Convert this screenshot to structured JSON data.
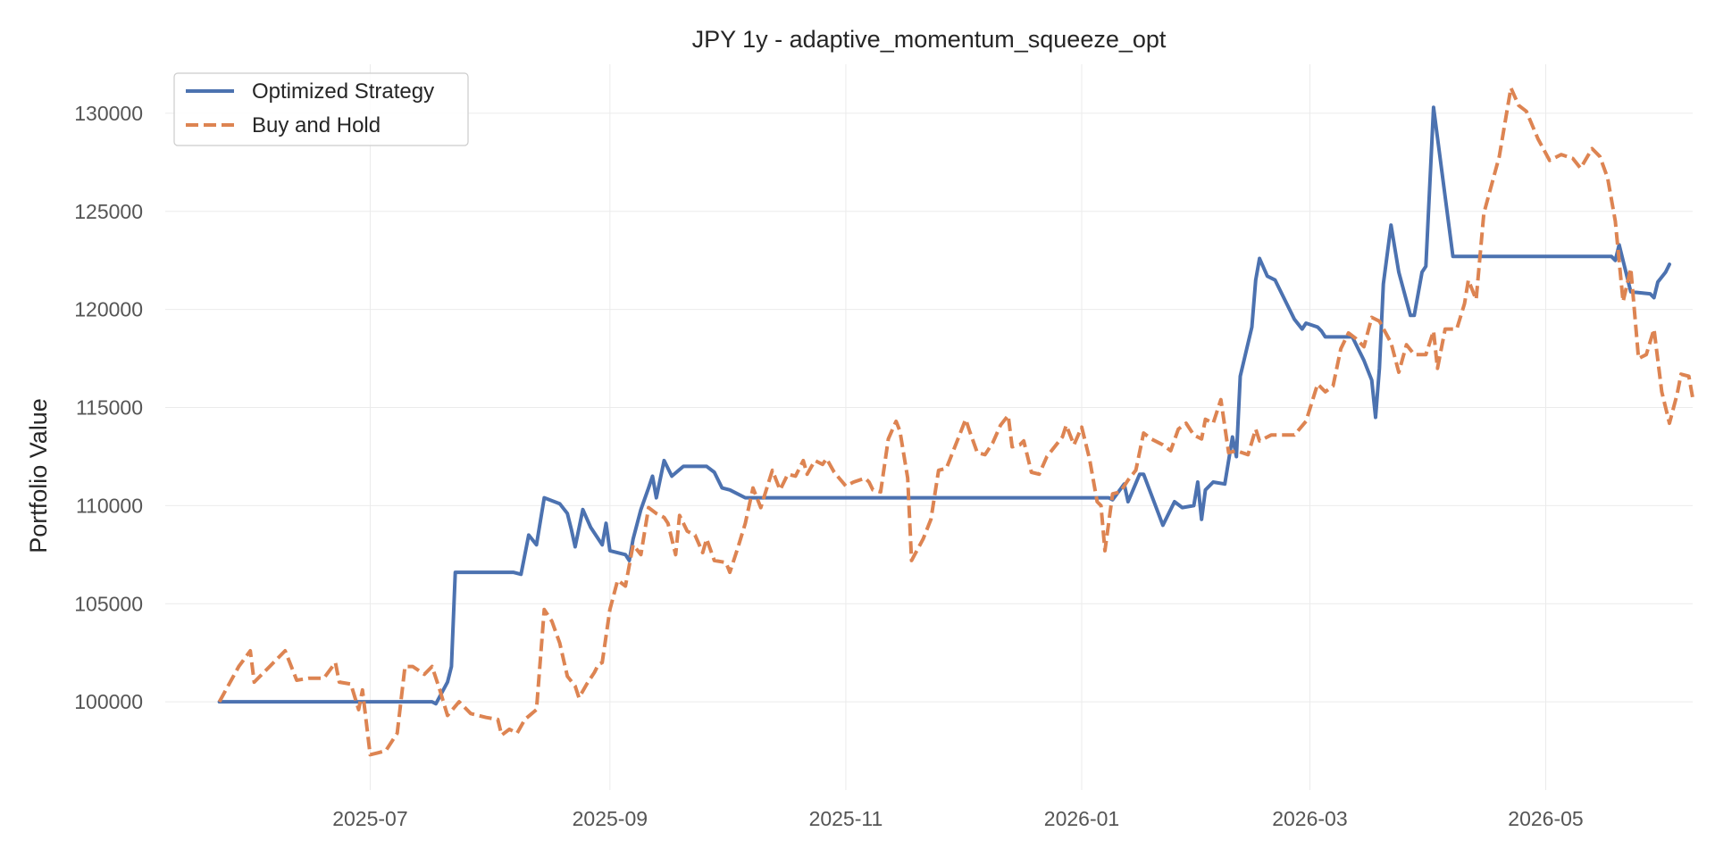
{
  "chart_data": {
    "type": "line",
    "title": "JPY 1y - adaptive_momentum_squeeze_opt",
    "xlabel": "",
    "ylabel": "Portfolio Value",
    "xlim": [
      "2025-05-09",
      "2026-06-08"
    ],
    "ylim": [
      95500,
      132500
    ],
    "grid": true,
    "legend_position": "top-left",
    "x_ticks": [
      "2025-07",
      "2025-09",
      "2025-11",
      "2026-01",
      "2026-03",
      "2026-05"
    ],
    "y_ticks": [
      100000,
      105000,
      110000,
      115000,
      120000,
      125000,
      130000
    ],
    "series": [
      {
        "name": "Optimized Strategy",
        "color": "#4c72b0",
        "style": "solid",
        "points": [
          [
            "2025-05-23",
            100000
          ],
          [
            "2025-07-17",
            100000
          ],
          [
            "2025-07-18",
            99900
          ],
          [
            "2025-07-21",
            101000
          ],
          [
            "2025-07-22",
            101800
          ],
          [
            "2025-07-23",
            106600
          ],
          [
            "2025-08-07",
            106600
          ],
          [
            "2025-08-09",
            106500
          ],
          [
            "2025-08-11",
            108500
          ],
          [
            "2025-08-13",
            108000
          ],
          [
            "2025-08-15",
            110400
          ],
          [
            "2025-08-19",
            110100
          ],
          [
            "2025-08-21",
            109600
          ],
          [
            "2025-08-22",
            108800
          ],
          [
            "2025-08-23",
            107900
          ],
          [
            "2025-08-25",
            109800
          ],
          [
            "2025-08-27",
            108900
          ],
          [
            "2025-08-30",
            108000
          ],
          [
            "2025-08-31",
            109100
          ],
          [
            "2025-09-01",
            107700
          ],
          [
            "2025-09-05",
            107500
          ],
          [
            "2025-09-06",
            107200
          ],
          [
            "2025-09-07",
            108300
          ],
          [
            "2025-09-09",
            109800
          ],
          [
            "2025-09-11",
            110900
          ],
          [
            "2025-09-12",
            111500
          ],
          [
            "2025-09-13",
            110400
          ],
          [
            "2025-09-15",
            112300
          ],
          [
            "2025-09-17",
            111500
          ],
          [
            "2025-09-20",
            112000
          ],
          [
            "2025-09-26",
            112000
          ],
          [
            "2025-09-28",
            111700
          ],
          [
            "2025-09-30",
            110900
          ],
          [
            "2025-10-02",
            110800
          ],
          [
            "2025-10-06",
            110400
          ],
          [
            "2026-01-08",
            110400
          ],
          [
            "2026-01-09",
            110300
          ],
          [
            "2026-01-12",
            111100
          ],
          [
            "2026-01-13",
            110200
          ],
          [
            "2026-01-16",
            111600
          ],
          [
            "2026-01-17",
            111600
          ],
          [
            "2026-01-22",
            109000
          ],
          [
            "2026-01-25",
            110200
          ],
          [
            "2026-01-27",
            109900
          ],
          [
            "2026-01-30",
            110000
          ],
          [
            "2026-01-31",
            111200
          ],
          [
            "2026-02-01",
            109300
          ],
          [
            "2026-02-02",
            110800
          ],
          [
            "2026-02-04",
            111200
          ],
          [
            "2026-02-07",
            111100
          ],
          [
            "2026-02-09",
            113500
          ],
          [
            "2026-02-10",
            112500
          ],
          [
            "2026-02-11",
            116600
          ],
          [
            "2026-02-14",
            119100
          ],
          [
            "2026-02-15",
            121500
          ],
          [
            "2026-02-16",
            122600
          ],
          [
            "2026-02-18",
            121700
          ],
          [
            "2026-02-20",
            121500
          ],
          [
            "2026-02-25",
            119500
          ],
          [
            "2026-02-27",
            119000
          ],
          [
            "2026-02-28",
            119300
          ],
          [
            "2026-03-03",
            119100
          ],
          [
            "2026-03-04",
            118900
          ],
          [
            "2026-03-05",
            118600
          ],
          [
            "2026-03-12",
            118600
          ],
          [
            "2026-03-15",
            117400
          ],
          [
            "2026-03-17",
            116400
          ],
          [
            "2026-03-18",
            114500
          ],
          [
            "2026-03-19",
            117000
          ],
          [
            "2026-03-20",
            121300
          ],
          [
            "2026-03-22",
            124300
          ],
          [
            "2026-03-24",
            121900
          ],
          [
            "2026-03-27",
            119700
          ],
          [
            "2026-03-28",
            119700
          ],
          [
            "2026-03-30",
            121900
          ],
          [
            "2026-03-31",
            122200
          ],
          [
            "2026-04-02",
            130300
          ],
          [
            "2026-04-07",
            122700
          ],
          [
            "2026-05-10",
            122700
          ],
          [
            "2026-05-18",
            122700
          ],
          [
            "2026-05-19",
            122500
          ],
          [
            "2026-05-20",
            123300
          ],
          [
            "2026-05-23",
            120900
          ],
          [
            "2026-05-28",
            120800
          ],
          [
            "2026-05-29",
            120600
          ],
          [
            "2026-05-30",
            121400
          ],
          [
            "2026-06-01",
            121900
          ],
          [
            "2026-06-02",
            122300
          ]
        ]
      },
      {
        "name": "Buy and Hold",
        "color": "#dd8452",
        "style": "dashed",
        "points": [
          [
            "2025-05-23",
            100000
          ],
          [
            "2025-05-28",
            101800
          ],
          [
            "2025-05-31",
            102600
          ],
          [
            "2025-06-01",
            101000
          ],
          [
            "2025-06-05",
            101800
          ],
          [
            "2025-06-09",
            102600
          ],
          [
            "2025-06-12",
            101100
          ],
          [
            "2025-06-15",
            101200
          ],
          [
            "2025-06-19",
            101200
          ],
          [
            "2025-06-22",
            102000
          ],
          [
            "2025-06-23",
            101000
          ],
          [
            "2025-06-26",
            100900
          ],
          [
            "2025-06-28",
            99600
          ],
          [
            "2025-06-29",
            100600
          ],
          [
            "2025-07-01",
            97300
          ],
          [
            "2025-07-03",
            97400
          ],
          [
            "2025-07-05",
            97500
          ],
          [
            "2025-07-08",
            98400
          ],
          [
            "2025-07-10",
            101800
          ],
          [
            "2025-07-12",
            101800
          ],
          [
            "2025-07-15",
            101400
          ],
          [
            "2025-07-17",
            101800
          ],
          [
            "2025-07-19",
            100600
          ],
          [
            "2025-07-21",
            99300
          ],
          [
            "2025-07-24",
            100000
          ],
          [
            "2025-07-27",
            99400
          ],
          [
            "2025-07-31",
            99200
          ],
          [
            "2025-08-03",
            99100
          ],
          [
            "2025-08-04",
            98300
          ],
          [
            "2025-08-06",
            98600
          ],
          [
            "2025-08-08",
            98400
          ],
          [
            "2025-08-10",
            99100
          ],
          [
            "2025-08-13",
            99600
          ],
          [
            "2025-08-15",
            104700
          ],
          [
            "2025-08-17",
            104100
          ],
          [
            "2025-08-19",
            103000
          ],
          [
            "2025-08-21",
            101300
          ],
          [
            "2025-08-23",
            100800
          ],
          [
            "2025-08-24",
            100200
          ],
          [
            "2025-08-26",
            100900
          ],
          [
            "2025-08-28",
            101500
          ],
          [
            "2025-08-29",
            101900
          ],
          [
            "2025-08-30",
            102000
          ],
          [
            "2025-09-01",
            104700
          ],
          [
            "2025-09-03",
            106200
          ],
          [
            "2025-09-05",
            105900
          ],
          [
            "2025-09-07",
            108000
          ],
          [
            "2025-09-09",
            107500
          ],
          [
            "2025-09-11",
            109900
          ],
          [
            "2025-09-13",
            109600
          ],
          [
            "2025-09-15",
            109400
          ],
          [
            "2025-09-16",
            109100
          ],
          [
            "2025-09-18",
            107500
          ],
          [
            "2025-09-19",
            109500
          ],
          [
            "2025-09-21",
            108700
          ],
          [
            "2025-09-23",
            108500
          ],
          [
            "2025-09-25",
            107600
          ],
          [
            "2025-09-26",
            108300
          ],
          [
            "2025-09-28",
            107200
          ],
          [
            "2025-10-01",
            107100
          ],
          [
            "2025-10-02",
            106600
          ],
          [
            "2025-10-04",
            107800
          ],
          [
            "2025-10-06",
            109100
          ],
          [
            "2025-10-08",
            110900
          ],
          [
            "2025-10-10",
            109900
          ],
          [
            "2025-10-13",
            111800
          ],
          [
            "2025-10-15",
            110800
          ],
          [
            "2025-10-17",
            111600
          ],
          [
            "2025-10-19",
            111500
          ],
          [
            "2025-10-21",
            112300
          ],
          [
            "2025-10-22",
            111600
          ],
          [
            "2025-10-24",
            112300
          ],
          [
            "2025-10-26",
            112100
          ],
          [
            "2025-10-27",
            112400
          ],
          [
            "2025-10-29",
            111700
          ],
          [
            "2025-11-01",
            111000
          ],
          [
            "2025-11-03",
            111200
          ],
          [
            "2025-11-06",
            111400
          ],
          [
            "2025-11-07",
            111200
          ],
          [
            "2025-11-08",
            110800
          ],
          [
            "2025-11-10",
            110700
          ],
          [
            "2025-11-12",
            113400
          ],
          [
            "2025-11-14",
            114300
          ],
          [
            "2025-11-15",
            113800
          ],
          [
            "2025-11-17",
            111400
          ],
          [
            "2025-11-18",
            107200
          ],
          [
            "2025-11-21",
            108300
          ],
          [
            "2025-11-23",
            109300
          ],
          [
            "2025-11-25",
            111800
          ],
          [
            "2025-11-27",
            111900
          ],
          [
            "2025-11-30",
            113400
          ],
          [
            "2025-12-02",
            114400
          ],
          [
            "2025-12-03",
            113800
          ],
          [
            "2025-12-05",
            112700
          ],
          [
            "2025-12-07",
            112600
          ],
          [
            "2025-12-09",
            113200
          ],
          [
            "2025-12-11",
            114100
          ],
          [
            "2025-12-13",
            114600
          ],
          [
            "2025-12-14",
            113000
          ],
          [
            "2025-12-16",
            113100
          ],
          [
            "2025-12-17",
            113300
          ],
          [
            "2025-12-19",
            111700
          ],
          [
            "2025-12-21",
            111600
          ],
          [
            "2025-12-23",
            112500
          ],
          [
            "2025-12-25",
            113000
          ],
          [
            "2025-12-27",
            113500
          ],
          [
            "2025-12-28",
            114100
          ],
          [
            "2025-12-30",
            113100
          ],
          [
            "2026-01-01",
            114000
          ],
          [
            "2026-01-03",
            112400
          ],
          [
            "2026-01-05",
            110200
          ],
          [
            "2026-01-06",
            110000
          ],
          [
            "2026-01-07",
            107700
          ],
          [
            "2026-01-09",
            110600
          ],
          [
            "2026-01-11",
            110700
          ],
          [
            "2026-01-13",
            111300
          ],
          [
            "2026-01-15",
            111800
          ],
          [
            "2026-01-17",
            113700
          ],
          [
            "2026-01-19",
            113400
          ],
          [
            "2026-01-22",
            113100
          ],
          [
            "2026-01-24",
            112800
          ],
          [
            "2026-01-26",
            113900
          ],
          [
            "2026-01-28",
            114200
          ],
          [
            "2026-01-30",
            113600
          ],
          [
            "2026-02-01",
            113400
          ],
          [
            "2026-02-02",
            114400
          ],
          [
            "2026-02-04",
            114200
          ],
          [
            "2026-02-06",
            115400
          ],
          [
            "2026-02-08",
            112700
          ],
          [
            "2026-02-10",
            112800
          ],
          [
            "2026-02-13",
            112600
          ],
          [
            "2026-02-15",
            113900
          ],
          [
            "2026-02-16",
            113300
          ],
          [
            "2026-02-19",
            113600
          ],
          [
            "2026-02-22",
            113600
          ],
          [
            "2026-02-25",
            113600
          ],
          [
            "2026-02-28",
            114300
          ],
          [
            "2026-03-03",
            116200
          ],
          [
            "2026-03-05",
            115800
          ],
          [
            "2026-03-07",
            116100
          ],
          [
            "2026-03-09",
            118000
          ],
          [
            "2026-03-11",
            118800
          ],
          [
            "2026-03-13",
            118500
          ],
          [
            "2026-03-15",
            118100
          ],
          [
            "2026-03-17",
            119600
          ],
          [
            "2026-03-19",
            119400
          ],
          [
            "2026-03-22",
            118300
          ],
          [
            "2026-03-24",
            116800
          ],
          [
            "2026-03-26",
            118200
          ],
          [
            "2026-03-28",
            117700
          ],
          [
            "2026-03-31",
            117700
          ],
          [
            "2026-04-02",
            118900
          ],
          [
            "2026-04-03",
            117000
          ],
          [
            "2026-04-05",
            119000
          ],
          [
            "2026-04-08",
            119000
          ],
          [
            "2026-04-10",
            120300
          ],
          [
            "2026-04-11",
            121500
          ],
          [
            "2026-04-13",
            120500
          ],
          [
            "2026-04-15",
            124900
          ],
          [
            "2026-04-19",
            127800
          ],
          [
            "2026-04-22",
            131300
          ],
          [
            "2026-04-24",
            130400
          ],
          [
            "2026-04-26",
            130100
          ],
          [
            "2026-04-29",
            128700
          ],
          [
            "2026-05-02",
            127600
          ],
          [
            "2026-05-05",
            127900
          ],
          [
            "2026-05-08",
            127700
          ],
          [
            "2026-05-10",
            127200
          ],
          [
            "2026-05-13",
            128200
          ],
          [
            "2026-05-15",
            127800
          ],
          [
            "2026-05-17",
            126700
          ],
          [
            "2026-05-19",
            124500
          ],
          [
            "2026-05-21",
            120400
          ],
          [
            "2026-05-23",
            122100
          ],
          [
            "2026-05-25",
            117500
          ],
          [
            "2026-05-27",
            117700
          ],
          [
            "2026-05-29",
            119000
          ],
          [
            "2026-05-31",
            115800
          ],
          [
            "2026-06-02",
            114200
          ],
          [
            "2026-06-04",
            115700
          ],
          [
            "2026-06-05",
            116700
          ],
          [
            "2026-06-07",
            116600
          ],
          [
            "2026-06-08",
            115500
          ]
        ]
      }
    ]
  }
}
